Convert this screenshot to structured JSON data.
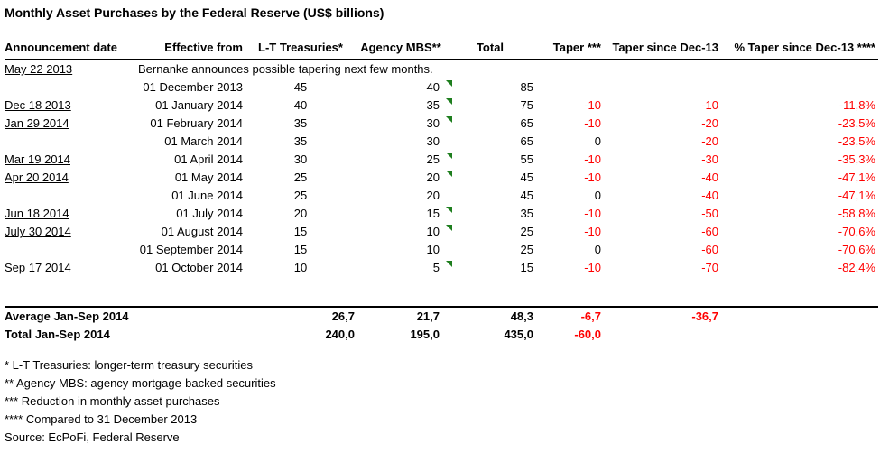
{
  "title": "Monthly Asset Purchases by the Federal Reserve (US$ billions)",
  "colors": {
    "negative": "#ff0000",
    "note_triangle": "#1e7e1e",
    "text": "#000000",
    "rule": "#000000"
  },
  "table": {
    "columns": [
      {
        "label": "Announcement date"
      },
      {
        "label": "Effective from"
      },
      {
        "label": "L-T Treasuries*"
      },
      {
        "label": "Agency MBS**"
      },
      {
        "label": "Total"
      },
      {
        "label": "Taper ***"
      },
      {
        "label": "Taper since Dec-13"
      },
      {
        "label": "% Taper since Dec-13 ****"
      }
    ],
    "rows": [
      {
        "announcement": "May 22 2013",
        "message": "Bernanke announces possible tapering next few months."
      },
      {
        "announcement": "",
        "effective": "01 December 2013",
        "lt": "45",
        "mbs": "40",
        "mbs_note": true,
        "total": "85",
        "taper": "",
        "taper_since": "",
        "pct": ""
      },
      {
        "announcement": "Dec 18 2013",
        "effective": "01 January 2014",
        "lt": "40",
        "mbs": "35",
        "mbs_note": true,
        "total": "75",
        "taper": "-10",
        "taper_since": "-10",
        "pct": "-11,8%"
      },
      {
        "announcement": "Jan 29 2014",
        "effective": "01 February 2014",
        "lt": "35",
        "mbs": "30",
        "mbs_note": true,
        "total": "65",
        "taper": "-10",
        "taper_since": "-20",
        "pct": "-23,5%"
      },
      {
        "announcement": "",
        "effective": "01 March 2014",
        "lt": "35",
        "mbs": "30",
        "mbs_note": false,
        "total": "65",
        "taper": "0",
        "taper_since": "-20",
        "pct": "-23,5%"
      },
      {
        "announcement": "Mar 19 2014",
        "effective": "01 April 2014",
        "lt": "30",
        "mbs": "25",
        "mbs_note": true,
        "total": "55",
        "taper": "-10",
        "taper_since": "-30",
        "pct": "-35,3%"
      },
      {
        "announcement": "Apr 20 2014",
        "effective": "01 May 2014",
        "lt": "25",
        "mbs": "20",
        "mbs_note": true,
        "total": "45",
        "taper": "-10",
        "taper_since": "-40",
        "pct": "-47,1%"
      },
      {
        "announcement": "",
        "effective": "01 June 2014",
        "lt": "25",
        "mbs": "20",
        "mbs_note": false,
        "total": "45",
        "taper": "0",
        "taper_since": "-40",
        "pct": "-47,1%"
      },
      {
        "announcement": "Jun 18 2014",
        "effective": "01 July 2014",
        "lt": "20",
        "mbs": "15",
        "mbs_note": true,
        "total": "35",
        "taper": "-10",
        "taper_since": "-50",
        "pct": "-58,8%"
      },
      {
        "announcement": "July 30 2014",
        "effective": "01 August 2014",
        "lt": "15",
        "mbs": "10",
        "mbs_note": true,
        "total": "25",
        "taper": "-10",
        "taper_since": "-60",
        "pct": "-70,6%"
      },
      {
        "announcement": "",
        "effective": "01 September 2014",
        "lt": "15",
        "mbs": "10",
        "mbs_note": false,
        "total": "25",
        "taper": "0",
        "taper_since": "-60",
        "pct": "-70,6%"
      },
      {
        "announcement": "Sep 17 2014",
        "effective": "01 October 2014",
        "lt": "10",
        "mbs": "5",
        "mbs_note": true,
        "total": "15",
        "taper": "-10",
        "taper_since": "-70",
        "pct": "-82,4%"
      }
    ],
    "summary_rows": [
      {
        "label": "Average Jan-Sep 2014",
        "lt": "26,7",
        "mbs": "21,7",
        "total": "48,3",
        "taper": "-6,7",
        "taper_since": "-36,7",
        "pct": ""
      },
      {
        "label": "Total Jan-Sep 2014",
        "lt": "240,0",
        "mbs": "195,0",
        "total": "435,0",
        "taper": "-60,0",
        "taper_since": "",
        "pct": ""
      }
    ]
  },
  "footnotes": [
    "* L-T Treasuries: longer-term treasury securities",
    "** Agency MBS: agency mortgage-backed securities",
    "*** Reduction in monthly asset purchases",
    "**** Compared to 31 December 2013"
  ],
  "source": "Source: EcPoFi, Federal Reserve"
}
